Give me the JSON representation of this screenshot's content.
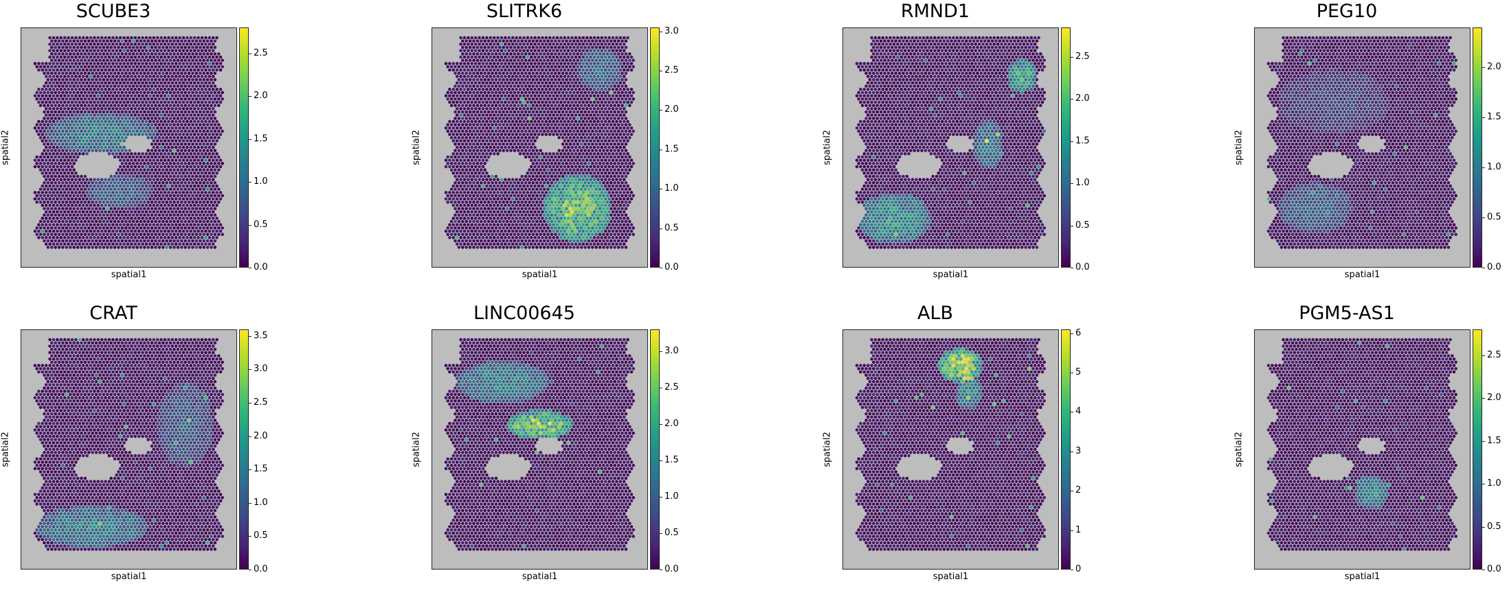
{
  "chart_data": [
    {
      "type": "heatmap",
      "title": "SCUBE3",
      "xlabel": "spatial1",
      "ylabel": "spatial2",
      "colorbar_ticks": [
        "0.0",
        "0.5",
        "1.0",
        "1.5",
        "2.0",
        "2.5"
      ],
      "vmax": 2.8,
      "hotspots": [
        {
          "cx": 0.35,
          "cy": 0.45,
          "rx": 0.3,
          "ry": 0.1,
          "v": 1.1
        },
        {
          "cx": 0.45,
          "cy": 0.72,
          "rx": 0.18,
          "ry": 0.08,
          "v": 0.8
        }
      ]
    },
    {
      "type": "heatmap",
      "title": "SLITRK6",
      "xlabel": "spatial1",
      "ylabel": "spatial2",
      "colorbar_ticks": [
        "0.0",
        "0.5",
        "1.0",
        "1.5",
        "2.0",
        "2.5",
        "3.0"
      ],
      "vmax": 3.05,
      "hotspots": [
        {
          "cx": 0.7,
          "cy": 0.8,
          "rx": 0.18,
          "ry": 0.16,
          "v": 2.4
        },
        {
          "cx": 0.82,
          "cy": 0.15,
          "rx": 0.12,
          "ry": 0.1,
          "v": 1.0
        }
      ]
    },
    {
      "type": "heatmap",
      "title": "RMND1",
      "xlabel": "spatial1",
      "ylabel": "spatial2",
      "colorbar_ticks": [
        "0.0",
        "0.5",
        "1.0",
        "1.5",
        "2.0",
        "2.5"
      ],
      "vmax": 2.85,
      "hotspots": [
        {
          "cx": 0.2,
          "cy": 0.85,
          "rx": 0.2,
          "ry": 0.12,
          "v": 1.5
        },
        {
          "cx": 0.7,
          "cy": 0.5,
          "rx": 0.08,
          "ry": 0.12,
          "v": 1.1
        },
        {
          "cx": 0.88,
          "cy": 0.18,
          "rx": 0.08,
          "ry": 0.08,
          "v": 1.8
        }
      ]
    },
    {
      "type": "heatmap",
      "title": "PEG10",
      "xlabel": "spatial1",
      "ylabel": "spatial2",
      "colorbar_ticks": [
        "0.0",
        "0.5",
        "1.0",
        "1.5",
        "2.0"
      ],
      "vmax": 2.4,
      "hotspots": [
        {
          "cx": 0.25,
          "cy": 0.8,
          "rx": 0.2,
          "ry": 0.12,
          "v": 0.7
        },
        {
          "cx": 0.35,
          "cy": 0.3,
          "rx": 0.3,
          "ry": 0.15,
          "v": 0.4
        }
      ]
    },
    {
      "type": "heatmap",
      "title": "CRAT",
      "xlabel": "spatial1",
      "ylabel": "spatial2",
      "colorbar_ticks": [
        "0.0",
        "0.5",
        "1.0",
        "1.5",
        "2.0",
        "2.5",
        "3.0",
        "3.5"
      ],
      "vmax": 3.6,
      "hotspots": [
        {
          "cx": 0.3,
          "cy": 0.88,
          "rx": 0.3,
          "ry": 0.1,
          "v": 1.5
        },
        {
          "cx": 0.8,
          "cy": 0.4,
          "rx": 0.15,
          "ry": 0.2,
          "v": 0.9
        }
      ]
    },
    {
      "type": "heatmap",
      "title": "LINC00645",
      "xlabel": "spatial1",
      "ylabel": "spatial2",
      "colorbar_ticks": [
        "0.0",
        "0.5",
        "1.0",
        "1.5",
        "2.0",
        "2.5",
        "3.0"
      ],
      "vmax": 3.3,
      "hotspots": [
        {
          "cx": 0.5,
          "cy": 0.4,
          "rx": 0.18,
          "ry": 0.07,
          "v": 2.8
        },
        {
          "cx": 0.3,
          "cy": 0.2,
          "rx": 0.25,
          "ry": 0.1,
          "v": 1.4
        }
      ]
    },
    {
      "type": "heatmap",
      "title": "ALB",
      "xlabel": "spatial1",
      "ylabel": "spatial2",
      "colorbar_ticks": [
        "0",
        "1",
        "2",
        "3",
        "4",
        "5",
        "6"
      ],
      "vmax": 6.1,
      "hotspots": [
        {
          "cx": 0.55,
          "cy": 0.12,
          "rx": 0.12,
          "ry": 0.08,
          "v": 5.5
        },
        {
          "cx": 0.6,
          "cy": 0.25,
          "rx": 0.07,
          "ry": 0.08,
          "v": 3.0
        }
      ]
    },
    {
      "type": "heatmap",
      "title": "PGM5-AS1",
      "xlabel": "spatial1",
      "ylabel": "spatial2",
      "colorbar_ticks": [
        "0.0",
        "0.5",
        "1.0",
        "1.5",
        "2.0",
        "2.5"
      ],
      "vmax": 2.8,
      "hotspots": [
        {
          "cx": 0.55,
          "cy": 0.72,
          "rx": 0.09,
          "ry": 0.08,
          "v": 1.3
        }
      ]
    }
  ]
}
